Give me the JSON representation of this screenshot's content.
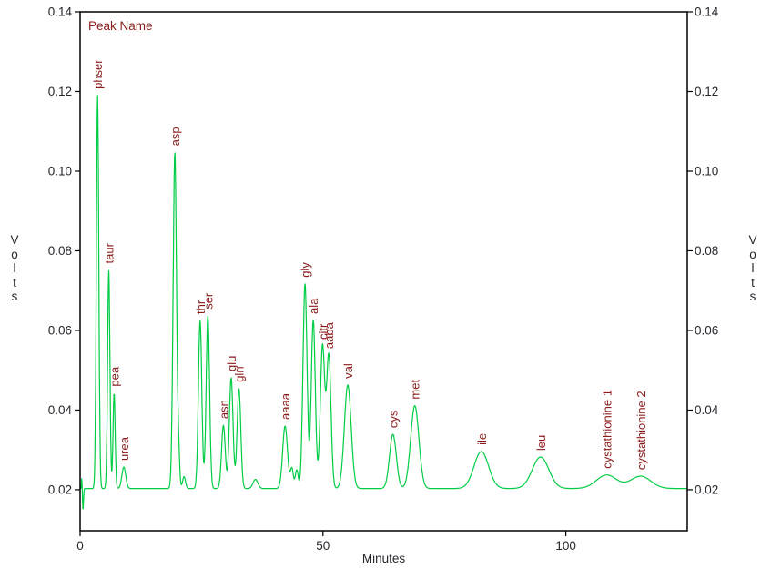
{
  "figure": {
    "legend_label": "Peak Name",
    "colors": {
      "trace": "#00cc44",
      "peak_label": "#8b1a1a",
      "axis_text": "#26262e",
      "border": "#000000",
      "background": "#ffffff"
    }
  },
  "chart_data": {
    "type": "line",
    "title": "Peak Name",
    "xlabel": "Minutes",
    "ylabel": "Volts",
    "xlim": [
      0,
      125
    ],
    "ylim": [
      0.0097,
      0.14
    ],
    "x_ticks": [
      0,
      50,
      100
    ],
    "y_ticks": [
      0.02,
      0.04,
      0.06,
      0.08,
      0.1,
      0.12,
      0.14
    ],
    "y_tick_labels": [
      "0.02",
      "0.04",
      "0.06",
      "0.08",
      "0.10",
      "0.12",
      "0.14"
    ],
    "x_tick_labels": [
      "0",
      "50",
      "100"
    ],
    "grid": false,
    "legend_position": "none",
    "baseline_volts": 0.0203,
    "peaks": [
      {
        "name": "phser",
        "time_min": 3.6,
        "apex_volts": 0.119,
        "sigma_min": 0.25
      },
      {
        "name": "taur",
        "time_min": 5.9,
        "apex_volts": 0.0752,
        "sigma_min": 0.24
      },
      {
        "name": "pea",
        "time_min": 7.0,
        "apex_volts": 0.0443,
        "sigma_min": 0.22
      },
      {
        "name": "urea",
        "time_min": 9.0,
        "apex_volts": 0.0257,
        "sigma_min": 0.4
      },
      {
        "name": "asp",
        "time_min": 19.5,
        "apex_volts": 0.1047,
        "sigma_min": 0.35
      },
      {
        "name": "thr",
        "time_min": 24.7,
        "apex_volts": 0.0625,
        "sigma_min": 0.35
      },
      {
        "name": "ser",
        "time_min": 26.3,
        "apex_volts": 0.0637,
        "sigma_min": 0.35
      },
      {
        "name": "asn",
        "time_min": 29.5,
        "apex_volts": 0.0362,
        "sigma_min": 0.38
      },
      {
        "name": "glu",
        "time_min": 31.1,
        "apex_volts": 0.0481,
        "sigma_min": 0.38
      },
      {
        "name": "gln",
        "time_min": 32.7,
        "apex_volts": 0.0454,
        "sigma_min": 0.38
      },
      {
        "name": "aaaa",
        "time_min": 42.2,
        "apex_volts": 0.036,
        "sigma_min": 0.5
      },
      {
        "name": "gly",
        "time_min": 46.3,
        "apex_volts": 0.0717,
        "sigma_min": 0.42
      },
      {
        "name": "ala",
        "time_min": 48.0,
        "apex_volts": 0.0625,
        "sigma_min": 0.42
      },
      {
        "name": "citr",
        "time_min": 49.9,
        "apex_volts": 0.0561,
        "sigma_min": 0.45
      },
      {
        "name": "aaba",
        "time_min": 51.2,
        "apex_volts": 0.0538,
        "sigma_min": 0.45
      },
      {
        "name": "val",
        "time_min": 55.1,
        "apex_volts": 0.0463,
        "sigma_min": 0.7
      },
      {
        "name": "cys",
        "time_min": 64.4,
        "apex_volts": 0.0339,
        "sigma_min": 0.7
      },
      {
        "name": "met",
        "time_min": 68.9,
        "apex_volts": 0.0411,
        "sigma_min": 0.85
      },
      {
        "name": "ile",
        "time_min": 82.6,
        "apex_volts": 0.0296,
        "sigma_min": 1.5
      },
      {
        "name": "leu",
        "time_min": 94.8,
        "apex_volts": 0.0282,
        "sigma_min": 1.7
      },
      {
        "name": "cystathionine 1",
        "time_min": 108.4,
        "apex_volts": 0.0237,
        "sigma_min": 2.1
      },
      {
        "name": "cystathionine 2",
        "time_min": 115.4,
        "apex_volts": 0.0234,
        "sigma_min": 2.1
      }
    ],
    "unlabeled_bumps": [
      {
        "time_min": 20.3,
        "amp_volts": 0.0075,
        "sigma_min": 0.22
      },
      {
        "time_min": 21.4,
        "amp_volts": 0.003,
        "sigma_min": 0.3
      },
      {
        "time_min": 36.1,
        "amp_volts": 0.0023,
        "sigma_min": 0.5
      },
      {
        "time_min": 43.6,
        "amp_volts": 0.005,
        "sigma_min": 0.3
      },
      {
        "time_min": 44.6,
        "amp_volts": 0.0047,
        "sigma_min": 0.3
      }
    ],
    "injection_artifacts": [
      {
        "time_min": 0.35,
        "amp_volts": 0.0028,
        "sigma_min": 0.07
      },
      {
        "time_min": 0.6,
        "amp_volts": -0.0055,
        "sigma_min": 0.1
      }
    ]
  }
}
